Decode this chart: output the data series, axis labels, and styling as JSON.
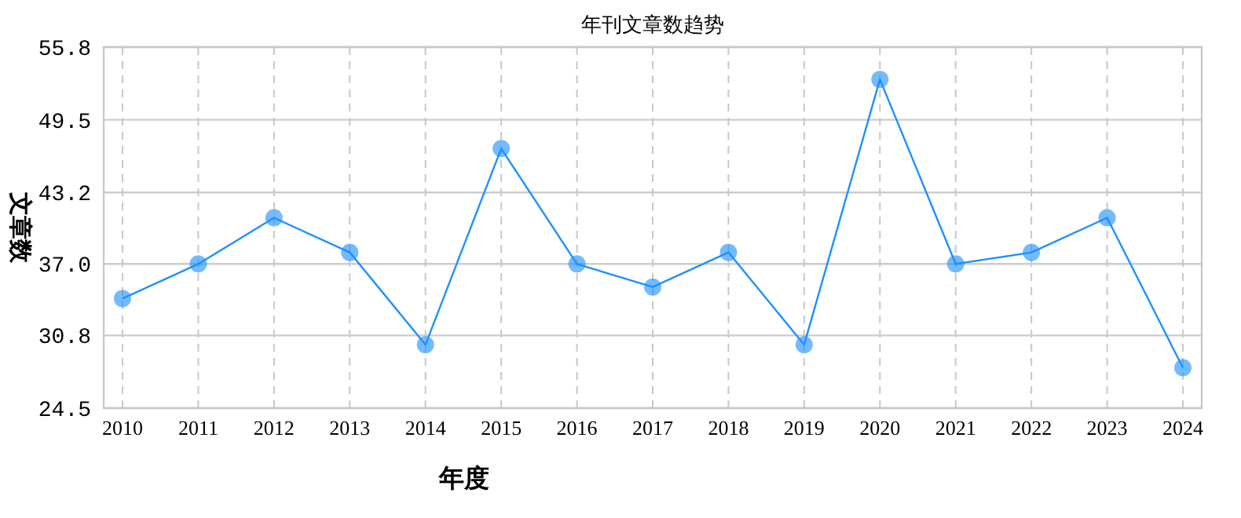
{
  "chart_data": {
    "type": "line",
    "title": "年刊文章数趋势",
    "xlabel": "年度",
    "ylabel": "文章数",
    "categories": [
      "2010",
      "2011",
      "2012",
      "2013",
      "2014",
      "2015",
      "2016",
      "2017",
      "2018",
      "2019",
      "2020",
      "2021",
      "2022",
      "2023",
      "2024"
    ],
    "series": [
      {
        "color": "#1e90ff",
        "values": [
          34,
          37,
          41,
          38,
          30,
          47,
          37,
          35,
          38,
          30,
          53,
          37,
          38,
          41,
          28
        ]
      }
    ],
    "ylim": [
      24.5,
      55.8
    ],
    "yticks": [
      {
        "value": 24.5,
        "label": "24.5"
      },
      {
        "value": 30.8,
        "label": "30.8"
      },
      {
        "value": 37.0,
        "label": "37.0"
      },
      {
        "value": 43.2,
        "label": "43.2"
      },
      {
        "value": 49.5,
        "label": "49.5"
      },
      {
        "value": 55.8,
        "label": "55.8"
      }
    ],
    "grid": true,
    "marker": "circle",
    "line_style": "solid"
  }
}
